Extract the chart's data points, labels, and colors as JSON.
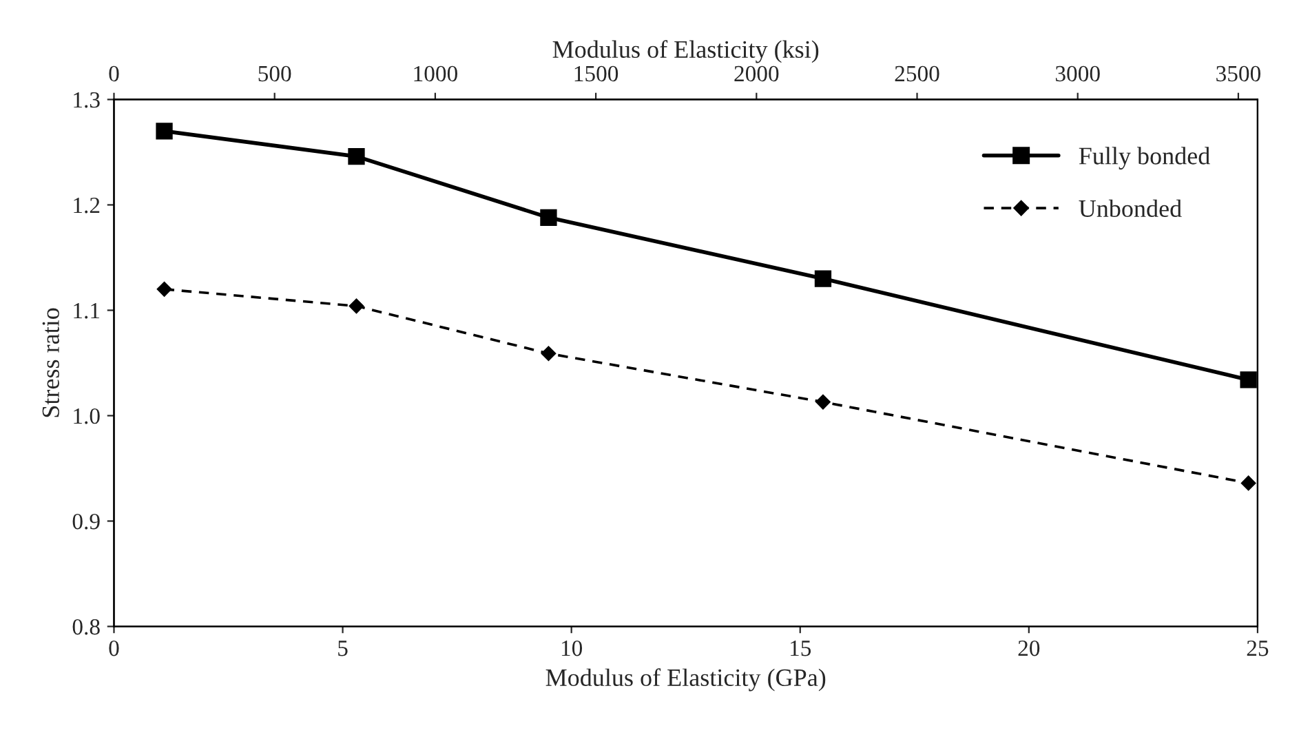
{
  "chart_data": {
    "type": "line",
    "xlabel": "Modulus of Elasticity (GPa)",
    "ylabel": "Stress ratio",
    "x2label": "Modulus of Elasticity (ksi)",
    "x": [
      1.1,
      5.3,
      9.5,
      15.5,
      24.8
    ],
    "series": [
      {
        "name": "Fully bonded",
        "color": "#000000",
        "marker": "square",
        "line_style": "solid",
        "values": [
          1.27,
          1.246,
          1.188,
          1.13,
          1.034
        ]
      },
      {
        "name": "Unbonded",
        "color": "#000000",
        "marker": "diamond",
        "line_style": "dashed",
        "values": [
          1.12,
          1.104,
          1.059,
          1.013,
          0.936
        ]
      }
    ],
    "xlim": [
      0,
      25
    ],
    "xticks": [
      0,
      5,
      10,
      15,
      20,
      25
    ],
    "ylim": [
      0.8,
      1.3
    ],
    "yticks": [
      {
        "value": 0.8,
        "label": "0.8"
      },
      {
        "value": 0.9,
        "label": "0.9"
      },
      {
        "value": 1.0,
        "label": "1.0"
      },
      {
        "value": 1.1,
        "label": "1.1"
      },
      {
        "value": 1.2,
        "label": "1.2"
      },
      {
        "value": 1.3,
        "label": "1.3"
      }
    ],
    "x2lim": [
      0,
      3560
    ],
    "x2ticks": [
      0,
      500,
      1000,
      1500,
      2000,
      2500,
      3000,
      3500
    ],
    "grid": false,
    "legend": "top right"
  }
}
